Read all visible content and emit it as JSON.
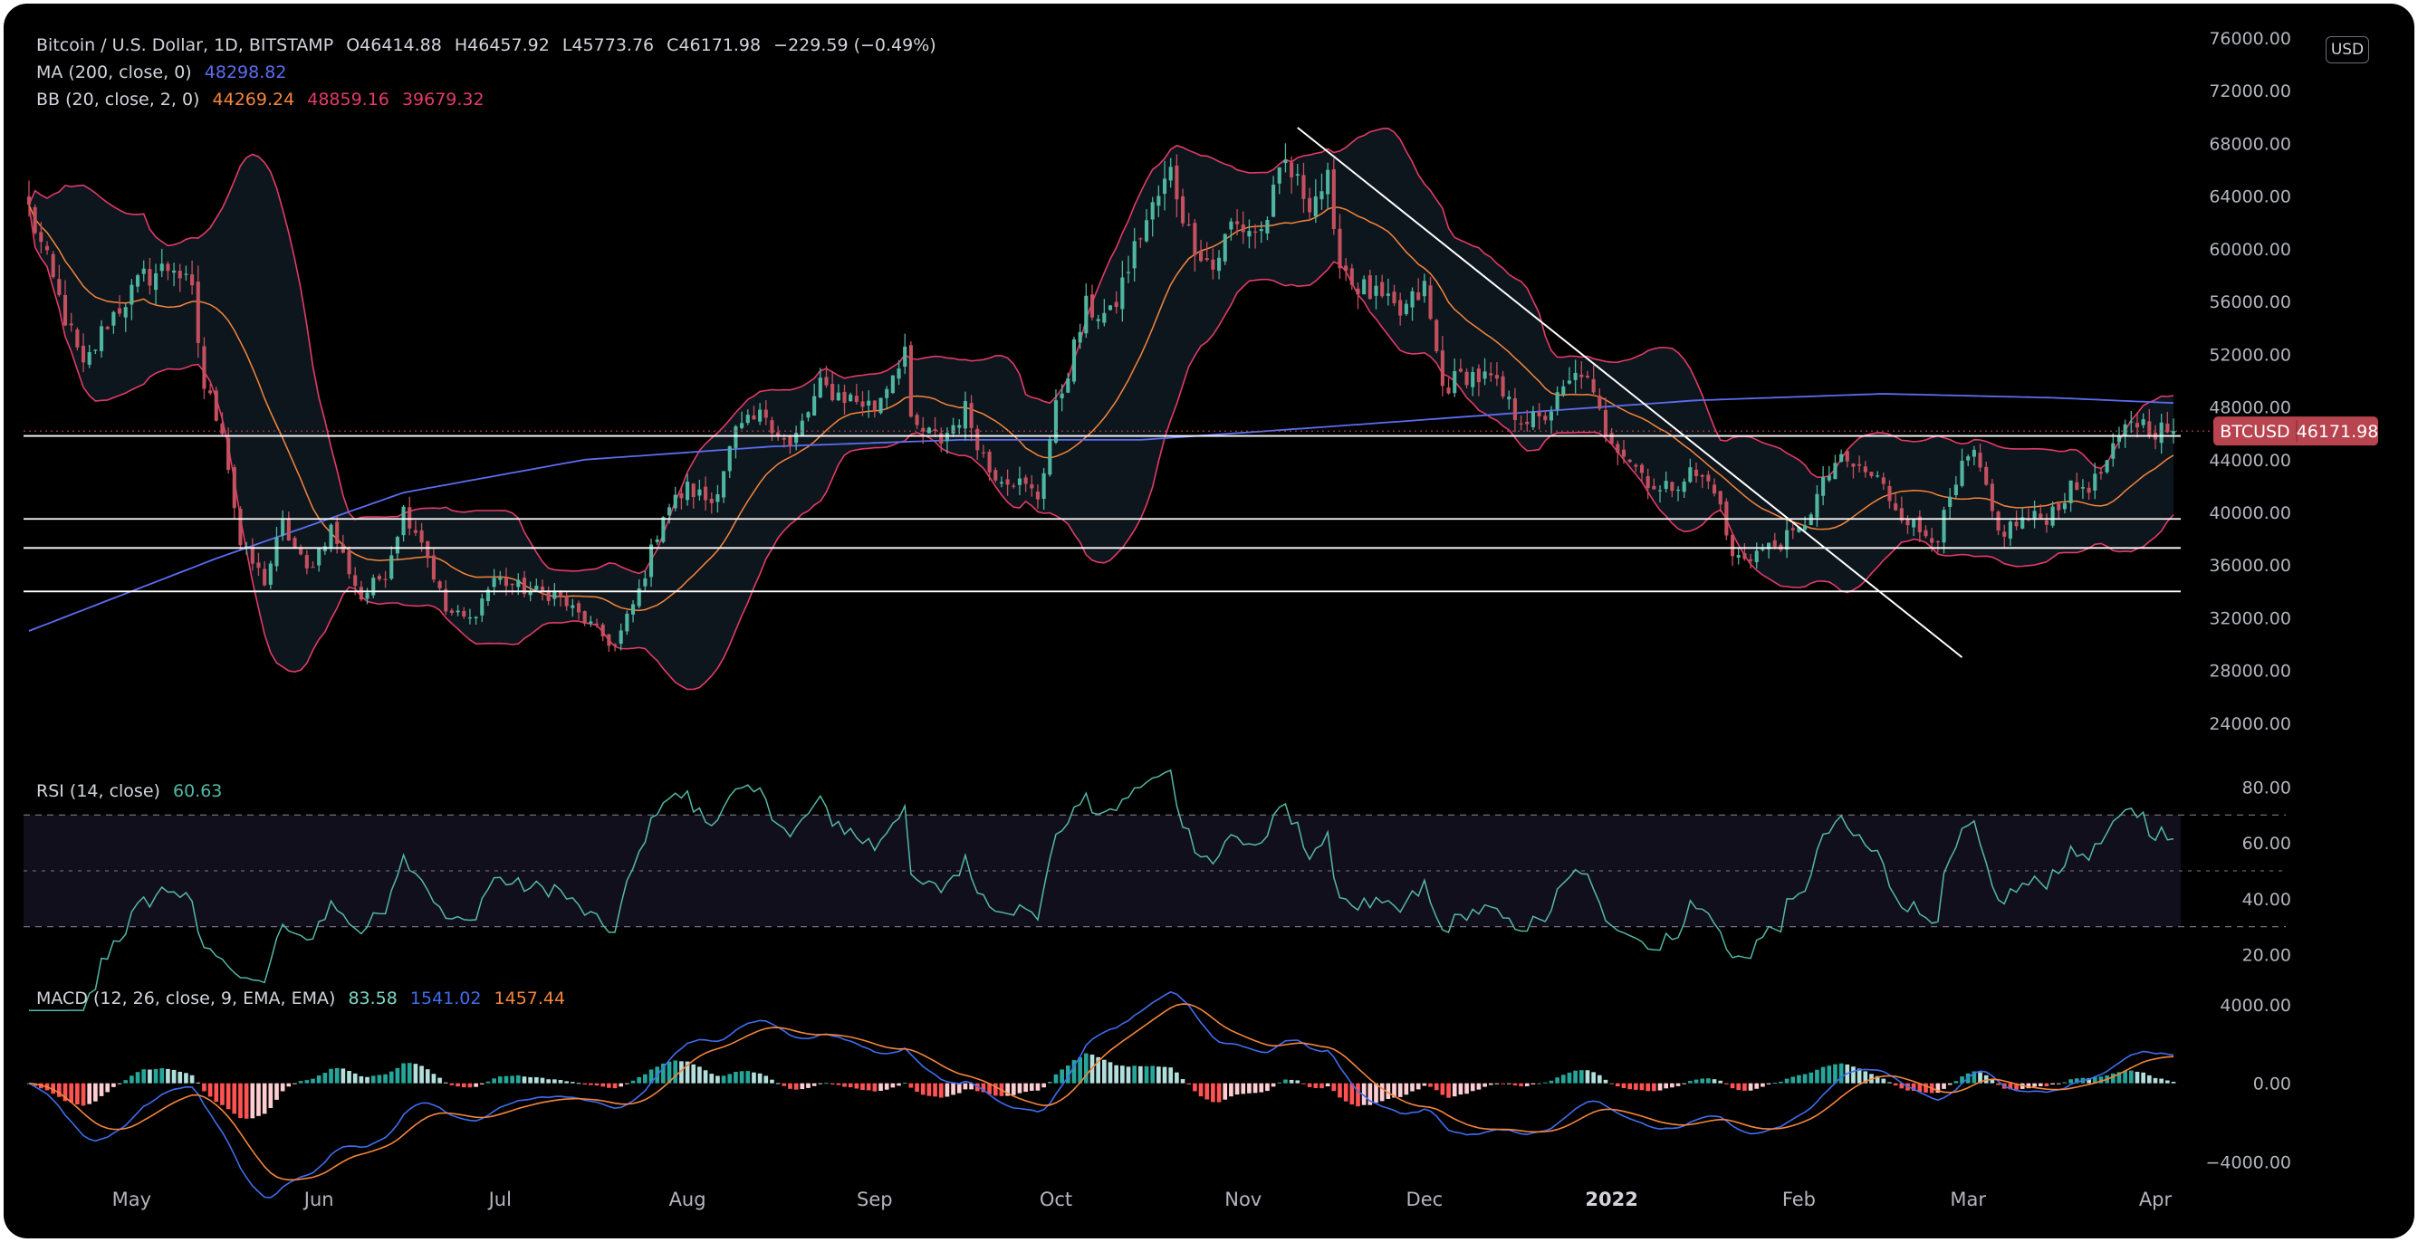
{
  "legend": {
    "main": {
      "symbol": "Bitcoin / U.S. Dollar, 1D, BITSTAMP",
      "o": "O46414.88",
      "h": "H46457.92",
      "l": "L45773.76",
      "c": "C46171.98",
      "change": "−229.59 (−0.49%)"
    },
    "ma": {
      "label": "MA (200, close, 0)",
      "value": "48298.82",
      "color": "#5b6df0"
    },
    "bb": {
      "label": "BB (20, close, 2, 0)",
      "basis": "44269.24",
      "upper": "48859.16",
      "lower": "39679.32",
      "basis_color": "#f5853b",
      "band_color": "#e23a67"
    },
    "rsi": {
      "label": "RSI (14, close)",
      "value": "60.63",
      "color": "#52b8a8"
    },
    "macd": {
      "label": "MACD (12, 26, close, 9, EMA, EMA)",
      "hist": "83.58",
      "macd": "1541.02",
      "signal": "1457.44",
      "hist_color": "#7fd8c8",
      "macd_color": "#3f6df0",
      "signal_color": "#f5853b"
    }
  },
  "currency": "USD",
  "price_badge": {
    "symbol": "BTCUSD",
    "value": "46171.98",
    "color": "#b8444f"
  },
  "colors": {
    "up": "#4fb5a0",
    "down": "#c2505e",
    "support": "#ffffff",
    "trendline": "#ffffff"
  },
  "chart_data": [
    {
      "type": "candlestick",
      "title": "Bitcoin / U.S. Dollar, 1D, BITSTAMP",
      "x_start": "2021-04-14",
      "x_end": "2022-04-04",
      "x_ticks": [
        {
          "label": "May",
          "date": "2021-05-01"
        },
        {
          "label": "Jun",
          "date": "2021-06-01"
        },
        {
          "label": "Jul",
          "date": "2021-07-01"
        },
        {
          "label": "Aug",
          "date": "2021-08-01"
        },
        {
          "label": "Sep",
          "date": "2021-09-01"
        },
        {
          "label": "Oct",
          "date": "2021-10-01"
        },
        {
          "label": "Nov",
          "date": "2021-11-01"
        },
        {
          "label": "Dec",
          "date": "2021-12-01"
        },
        {
          "label": "2022",
          "date": "2022-01-01"
        },
        {
          "label": "Feb",
          "date": "2022-02-01"
        },
        {
          "label": "Mar",
          "date": "2022-03-01"
        },
        {
          "label": "Apr",
          "date": "2022-04-01"
        }
      ],
      "ylim": [
        22000,
        76000
      ],
      "y_ticks": [
        "24000.00",
        "28000.00",
        "32000.00",
        "36000.00",
        "40000.00",
        "44000.00",
        "48000.00",
        "52000.00",
        "56000.00",
        "60000.00",
        "64000.00",
        "68000.00",
        "72000.00",
        "76000.00"
      ],
      "close_anchors": [
        [
          "2021-04-14",
          63000
        ],
        [
          "2021-04-18",
          57500
        ],
        [
          "2021-04-23",
          50800
        ],
        [
          "2021-04-27",
          54500
        ],
        [
          "2021-05-03",
          57800
        ],
        [
          "2021-05-08",
          58800
        ],
        [
          "2021-05-11",
          56500
        ],
        [
          "2021-05-13",
          49500
        ],
        [
          "2021-05-16",
          46500
        ],
        [
          "2021-05-19",
          37500
        ],
        [
          "2021-05-23",
          34800
        ],
        [
          "2021-05-26",
          39000
        ],
        [
          "2021-05-30",
          35500
        ],
        [
          "2021-06-03",
          38800
        ],
        [
          "2021-06-08",
          33500
        ],
        [
          "2021-06-12",
          35500
        ],
        [
          "2021-06-15",
          40200
        ],
        [
          "2021-06-18",
          38000
        ],
        [
          "2021-06-22",
          32500
        ],
        [
          "2021-06-26",
          31800
        ],
        [
          "2021-06-30",
          35000
        ],
        [
          "2021-07-06",
          34000
        ],
        [
          "2021-07-10",
          33800
        ],
        [
          "2021-07-15",
          31800
        ],
        [
          "2021-07-20",
          29800
        ],
        [
          "2021-07-24",
          34000
        ],
        [
          "2021-07-28",
          40000
        ],
        [
          "2021-08-01",
          41800
        ],
        [
          "2021-08-05",
          40800
        ],
        [
          "2021-08-09",
          46000
        ],
        [
          "2021-08-14",
          47500
        ],
        [
          "2021-08-18",
          44800
        ],
        [
          "2021-08-23",
          49500
        ],
        [
          "2021-08-27",
          48800
        ],
        [
          "2021-09-01",
          48000
        ],
        [
          "2021-09-06",
          52500
        ],
        [
          "2021-09-07",
          46500
        ],
        [
          "2021-09-12",
          45500
        ],
        [
          "2021-09-16",
          47800
        ],
        [
          "2021-09-20",
          43200
        ],
        [
          "2021-09-24",
          42500
        ],
        [
          "2021-09-28",
          41200
        ],
        [
          "2021-10-01",
          47800
        ],
        [
          "2021-10-06",
          55500
        ],
        [
          "2021-10-10",
          54800
        ],
        [
          "2021-10-15",
          61200
        ],
        [
          "2021-10-20",
          65800
        ],
        [
          "2021-10-23",
          61200
        ],
        [
          "2021-10-27",
          58500
        ],
        [
          "2021-10-30",
          61800
        ],
        [
          "2021-11-04",
          61300
        ],
        [
          "2021-11-08",
          66500
        ],
        [
          "2021-11-10",
          64800
        ],
        [
          "2021-11-12",
          63800
        ],
        [
          "2021-11-15",
          65000
        ],
        [
          "2021-11-16",
          60500
        ],
        [
          "2021-11-19",
          57500
        ],
        [
          "2021-11-23",
          56300
        ],
        [
          "2021-11-27",
          55000
        ],
        [
          "2021-12-01",
          57000
        ],
        [
          "2021-12-04",
          49500
        ],
        [
          "2021-12-08",
          50500
        ],
        [
          "2021-12-12",
          50000
        ],
        [
          "2021-12-16",
          47500
        ],
        [
          "2021-12-20",
          46800
        ],
        [
          "2021-12-27",
          50800
        ],
        [
          "2021-12-31",
          46300
        ],
        [
          "2022-01-05",
          43500
        ],
        [
          "2022-01-09",
          41500
        ],
        [
          "2022-01-14",
          43000
        ],
        [
          "2022-01-18",
          42000
        ],
        [
          "2022-01-21",
          36500
        ],
        [
          "2022-01-24",
          36800
        ],
        [
          "2022-01-28",
          37500
        ],
        [
          "2022-02-01",
          38500
        ],
        [
          "2022-02-07",
          43800
        ],
        [
          "2022-02-10",
          43500
        ],
        [
          "2022-02-14",
          42500
        ],
        [
          "2022-02-17",
          40500
        ],
        [
          "2022-02-21",
          38500
        ],
        [
          "2022-02-24",
          38300
        ],
        [
          "2022-02-28",
          43200
        ],
        [
          "2022-03-02",
          44400
        ],
        [
          "2022-03-06",
          38400
        ],
        [
          "2022-03-10",
          39400
        ],
        [
          "2022-03-14",
          39700
        ],
        [
          "2022-03-18",
          41700
        ],
        [
          "2022-03-22",
          42300
        ],
        [
          "2022-03-25",
          44500
        ],
        [
          "2022-03-28",
          47100
        ],
        [
          "2022-04-01",
          46300
        ],
        [
          "2022-04-04",
          46171.98
        ]
      ],
      "ma200_anchors": [
        [
          "2021-04-14",
          31000
        ],
        [
          "2021-05-15",
          36500
        ],
        [
          "2021-06-15",
          41500
        ],
        [
          "2021-07-15",
          44000
        ],
        [
          "2021-08-15",
          45000
        ],
        [
          "2021-09-15",
          45500
        ],
        [
          "2021-10-15",
          45500
        ],
        [
          "2021-11-15",
          46500
        ],
        [
          "2021-12-15",
          47500
        ],
        [
          "2022-01-15",
          48500
        ],
        [
          "2022-02-15",
          49000
        ],
        [
          "2022-03-15",
          48700
        ],
        [
          "2022-04-04",
          48298.82
        ]
      ],
      "horizontal_lines": [
        45800,
        39500,
        37300,
        34000
      ],
      "trendline": {
        "from": [
          "2021-11-10",
          69200
        ],
        "to": [
          "2022-02-28",
          29000
        ]
      },
      "last_price": 46171.98
    },
    {
      "type": "line",
      "title": "RSI (14, close)",
      "ylim": [
        15,
        85
      ],
      "y_ticks": [
        "20.00",
        "40.00",
        "60.00",
        "80.00"
      ],
      "bands": [
        30,
        50,
        70
      ],
      "last_value": 60.63
    },
    {
      "type": "bar+line",
      "title": "MACD (12, 26, close, 9, EMA, EMA)",
      "ylim": [
        -5600,
        5200
      ],
      "y_ticks": [
        "−4000.00",
        "0.00",
        "4000.00"
      ],
      "last_values": {
        "histogram": 83.58,
        "macd": 1541.02,
        "signal": 1457.44
      }
    }
  ]
}
